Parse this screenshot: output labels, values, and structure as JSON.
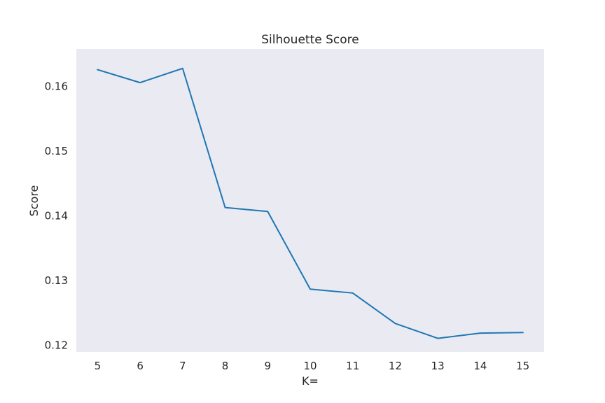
{
  "chart_data": {
    "type": "line",
    "title": "Silhouette Score",
    "xlabel": "K=",
    "ylabel": "Score",
    "x": [
      5,
      6,
      7,
      8,
      9,
      10,
      11,
      12,
      13,
      14,
      15
    ],
    "x_ticks": [
      "5",
      "6",
      "7",
      "8",
      "9",
      "10",
      "11",
      "12",
      "13",
      "14",
      "15"
    ],
    "y_ticks": [
      "0.12",
      "0.13",
      "0.14",
      "0.15",
      "0.16"
    ],
    "y_tick_values": [
      0.12,
      0.13,
      0.14,
      0.15,
      0.16
    ],
    "xlim": [
      4.5,
      15.5
    ],
    "ylim": [
      0.119,
      0.1658
    ],
    "grid": false,
    "series": [
      {
        "values": [
          0.1626,
          0.1606,
          0.1628,
          0.1413,
          0.1407,
          0.1287,
          0.1281,
          0.1234,
          0.1211,
          0.1219,
          0.122
        ],
        "color": "#1f77b4"
      }
    ]
  }
}
